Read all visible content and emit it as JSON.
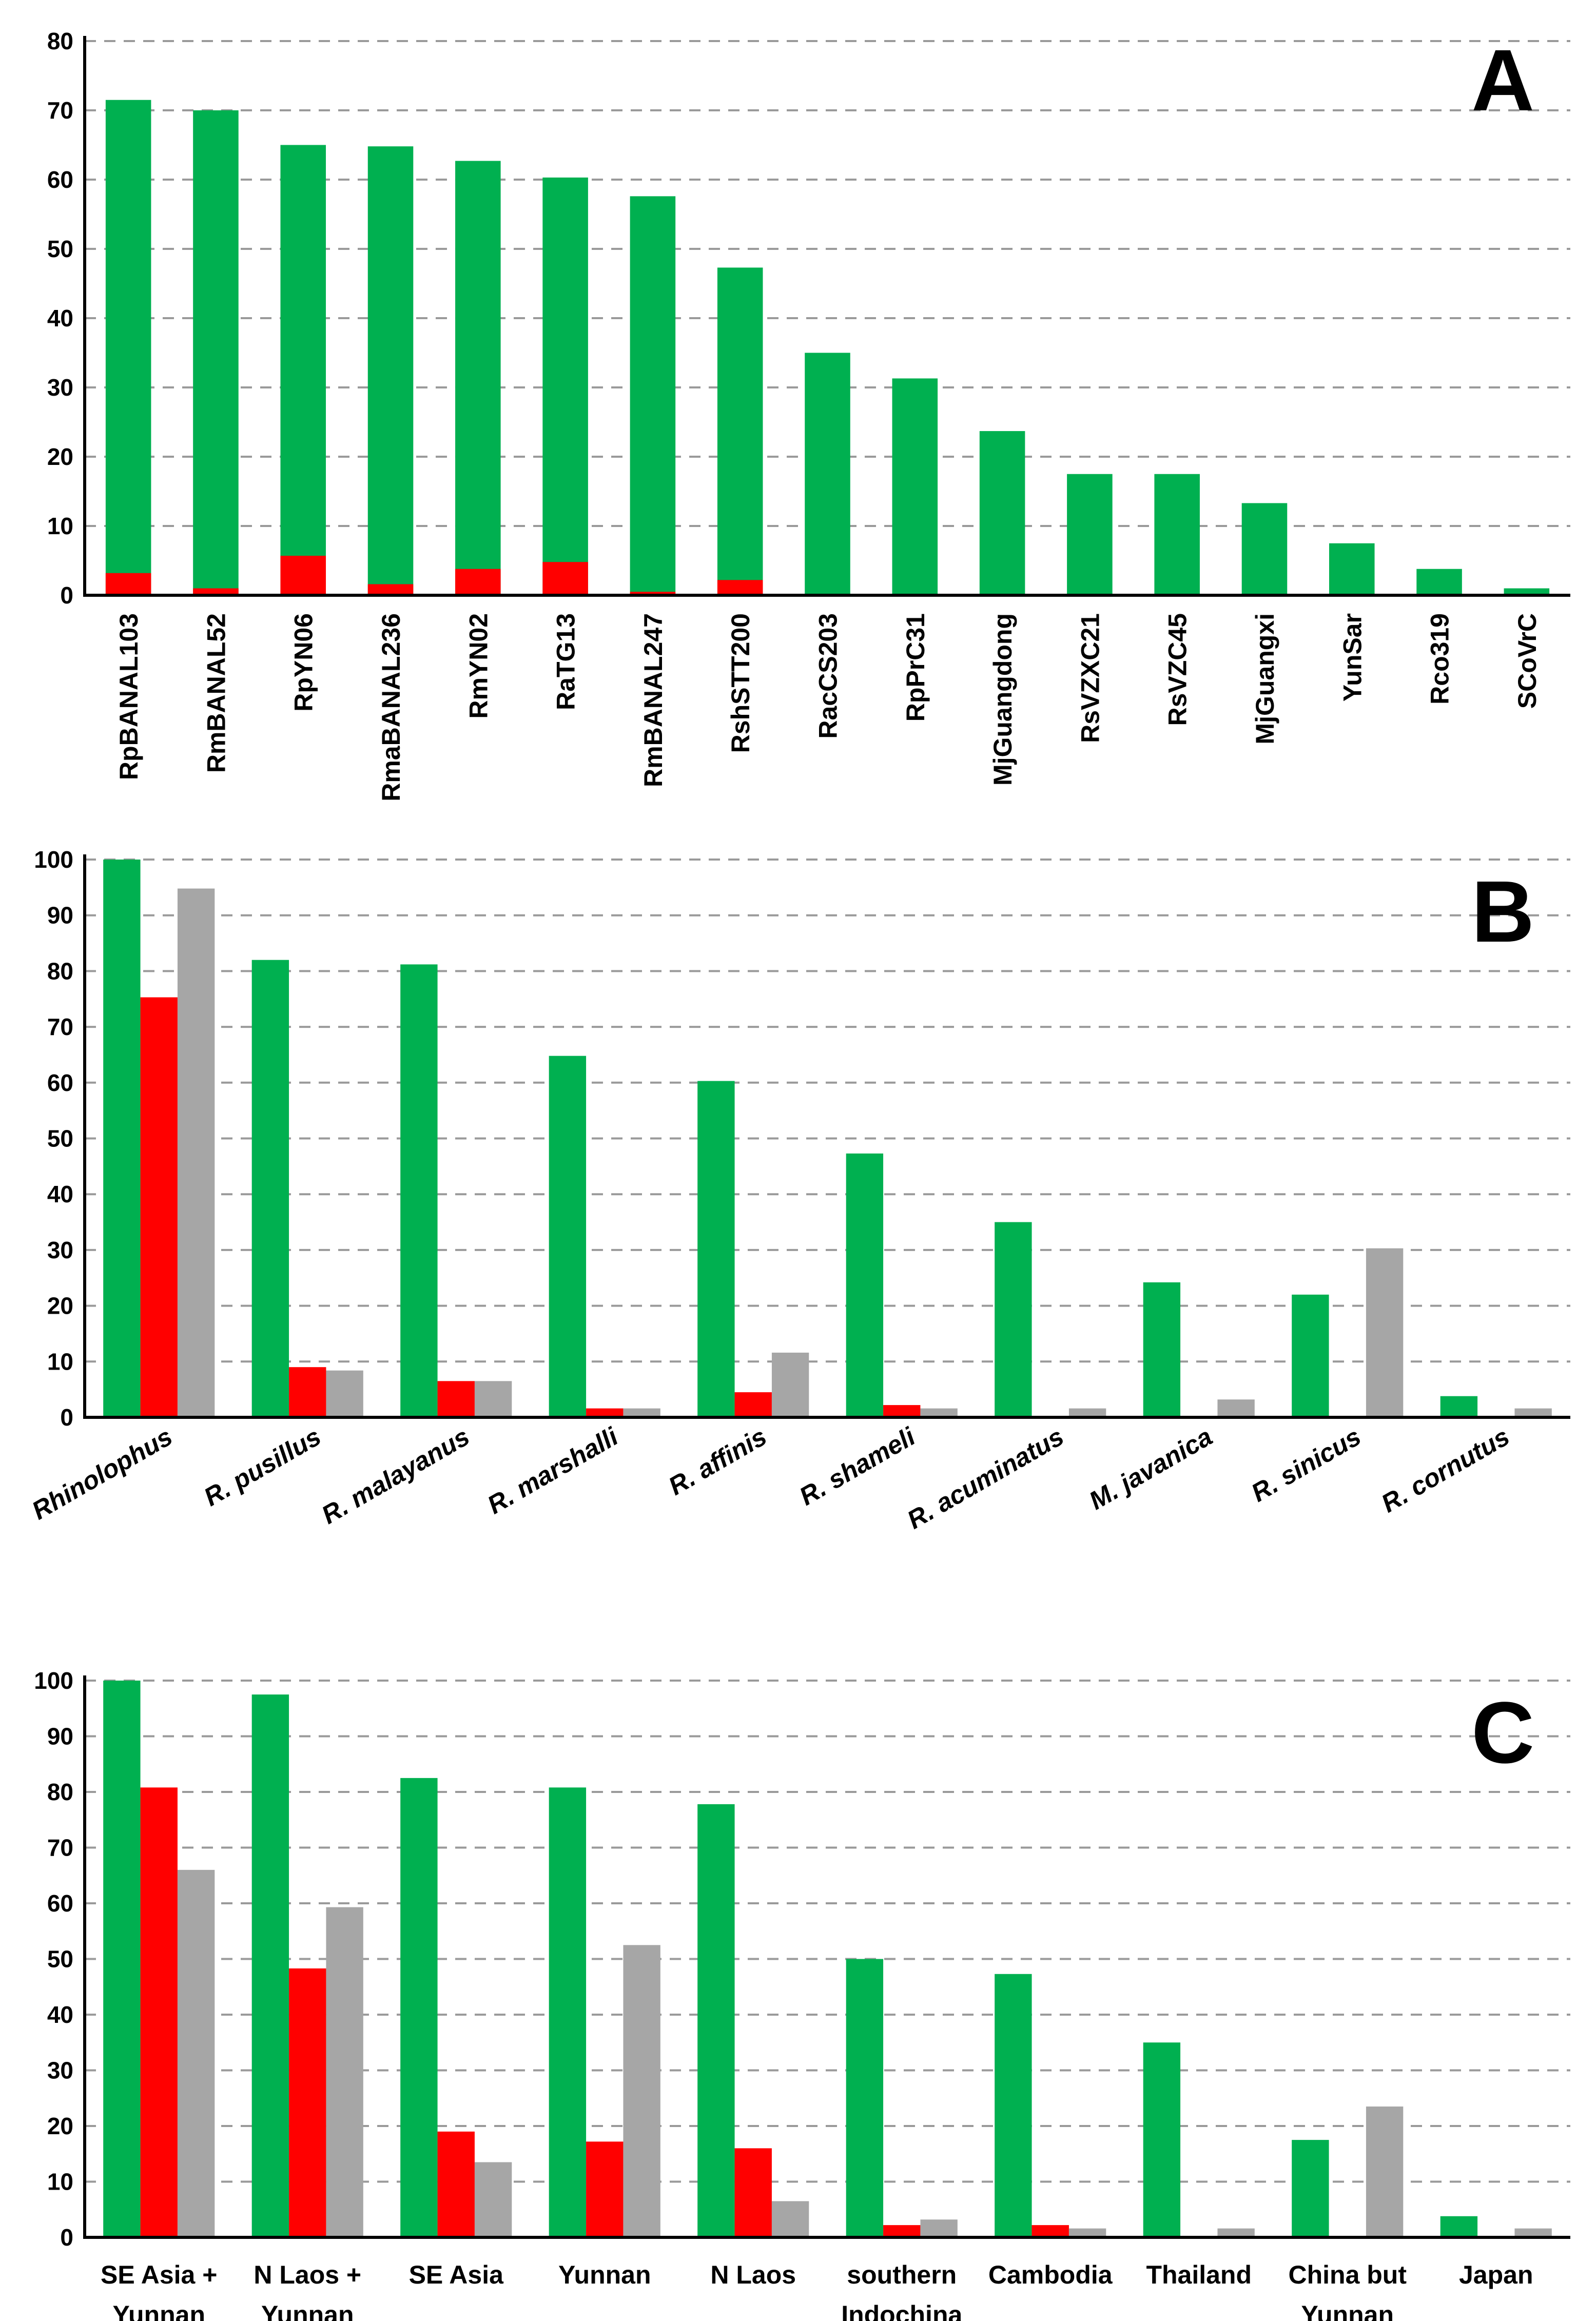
{
  "colors": {
    "green": "#00b050",
    "red": "#ff0000",
    "gray": "#a6a6a6"
  },
  "chart_data": [
    {
      "type": "bar",
      "title": "A",
      "stacked": true,
      "categories": [
        "RpBANAL103",
        "RmBANAL52",
        "RpYN06",
        "RmaBANAL236",
        "RmYN02",
        "RaTG13",
        "RmBANAL247",
        "RshSTT200",
        "RacCS203",
        "RpPrC31",
        "MjGuangdong",
        "RsVZXC21",
        "RsVZC45",
        "MjGuangxi",
        "YunSar",
        "Rco319",
        "SCoVrC"
      ],
      "series": [
        {
          "name": "green",
          "values": [
            71.5,
            70,
            65,
            64.8,
            62.7,
            60.3,
            57.6,
            47.3,
            35,
            31.3,
            23.7,
            17.5,
            17.5,
            13.3,
            7.5,
            3.8,
            1
          ]
        },
        {
          "name": "red",
          "values": [
            3.2,
            1,
            5.7,
            1.6,
            3.8,
            4.8,
            0.5,
            2.2,
            0,
            0,
            0,
            0,
            0,
            0,
            0,
            0,
            0
          ]
        }
      ],
      "yticks": [
        "0",
        "10",
        "20",
        "30",
        "40",
        "50",
        "60",
        "70",
        "80"
      ],
      "ylim": [
        0,
        80
      ],
      "grid": true
    },
    {
      "type": "bar",
      "title": "B",
      "categories": [
        "Rhinolophus",
        "R. pusillus",
        "R. malayanus",
        "R. marshalli",
        "R. affinis",
        "R. shameli",
        "R. acuminatus",
        "M. javanica",
        "R. sinicus",
        "R. cornutus"
      ],
      "series": [
        {
          "name": "green",
          "values": [
            100,
            82,
            81.2,
            64.8,
            60.3,
            47.3,
            35,
            24.2,
            22,
            3.8
          ]
        },
        {
          "name": "red",
          "values": [
            75.3,
            9,
            6.5,
            1.6,
            4.5,
            2.2,
            0,
            0,
            0,
            0
          ]
        },
        {
          "name": "gray",
          "values": [
            94.8,
            8.4,
            6.5,
            1.6,
            11.6,
            1.6,
            1.6,
            3.2,
            30.3,
            1.6
          ]
        }
      ],
      "yticks": [
        "0",
        "10",
        "20",
        "30",
        "40",
        "50",
        "60",
        "70",
        "80",
        "90",
        "100"
      ],
      "ylim": [
        0,
        100
      ],
      "grid": true
    },
    {
      "type": "bar",
      "title": "C",
      "categories": [
        [
          "SE Asia +",
          "Yunnan"
        ],
        [
          "N Laos +",
          "Yunnan"
        ],
        [
          "SE Asia"
        ],
        [
          "Yunnan"
        ],
        [
          "N Laos"
        ],
        [
          "southern",
          "Indochina"
        ],
        [
          "Cambodia"
        ],
        [
          "Thailand"
        ],
        [
          "China but",
          "Yunnan"
        ],
        [
          "Japan"
        ]
      ],
      "series": [
        {
          "name": "green",
          "values": [
            100,
            97.5,
            82.5,
            80.8,
            77.8,
            50,
            47.3,
            35,
            17.5,
            3.8
          ]
        },
        {
          "name": "red",
          "values": [
            80.8,
            48.3,
            19,
            17.2,
            16,
            2.2,
            2.2,
            0,
            0,
            0
          ]
        },
        {
          "name": "gray",
          "values": [
            66,
            59.3,
            13.5,
            52.5,
            6.5,
            3.2,
            1.6,
            1.6,
            23.5,
            1.6
          ]
        }
      ],
      "yticks": [
        "0",
        "10",
        "20",
        "30",
        "40",
        "50",
        "60",
        "70",
        "80",
        "90",
        "100"
      ],
      "ylim": [
        0,
        100
      ],
      "grid": true
    }
  ]
}
